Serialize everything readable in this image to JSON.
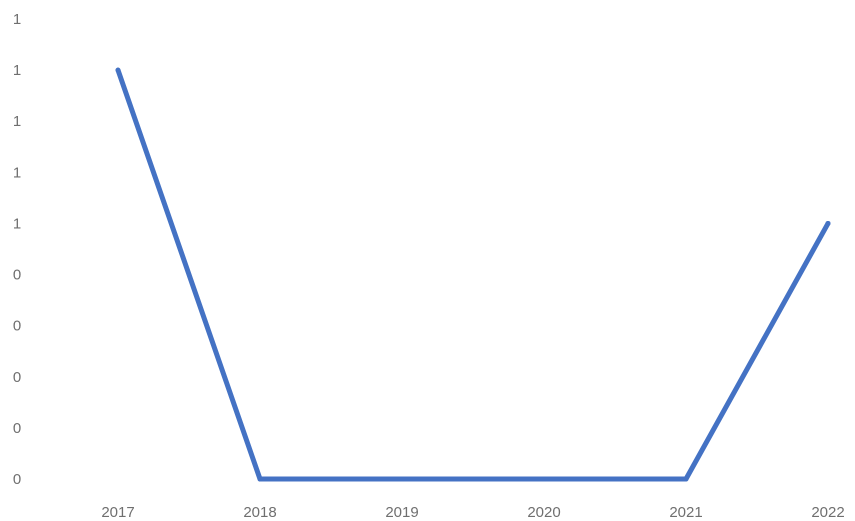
{
  "chart_data": {
    "type": "line",
    "title": "",
    "xlabel": "",
    "ylabel": "",
    "x": [
      "2017",
      "2018",
      "2019",
      "2020",
      "2021",
      "2022"
    ],
    "series": [
      {
        "values": [
          1.6,
          0,
          0,
          0,
          0,
          1.0
        ],
        "color": "#4472c4"
      }
    ],
    "y_tick_labels": [
      "0",
      "0",
      "0",
      "0",
      "0",
      "1",
      "1",
      "1",
      "1",
      "1"
    ],
    "ylim": [
      0,
      1.8
    ],
    "grid": false,
    "legend": "none"
  }
}
